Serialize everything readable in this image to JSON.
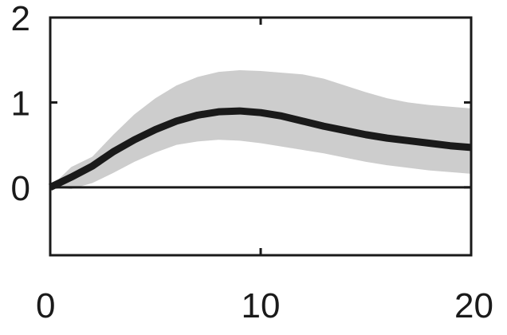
{
  "chart_data": {
    "type": "line",
    "title": "",
    "xlabel": "",
    "ylabel": "",
    "xlim": [
      0,
      20
    ],
    "ylim": [
      -0.8,
      2
    ],
    "xticks": [
      0,
      10,
      20
    ],
    "xtick_labels": [
      "0",
      "10",
      "20"
    ],
    "yticks": [
      0,
      1,
      2
    ],
    "ytick_labels": [
      "0",
      "1",
      "2"
    ],
    "grid": false,
    "legend": "none",
    "zero_line": 0,
    "series": [
      {
        "x": [
          0,
          1,
          2,
          3,
          4,
          5,
          6,
          7,
          8,
          9,
          10,
          11,
          12,
          13,
          14,
          15,
          16,
          17,
          18,
          19,
          20
        ],
        "y": [
          0.0,
          0.12,
          0.25,
          0.42,
          0.56,
          0.68,
          0.78,
          0.85,
          0.89,
          0.9,
          0.88,
          0.84,
          0.78,
          0.72,
          0.67,
          0.62,
          0.58,
          0.55,
          0.52,
          0.49,
          0.47
        ],
        "lower": [
          0.0,
          -0.02,
          0.05,
          0.17,
          0.3,
          0.41,
          0.5,
          0.54,
          0.56,
          0.55,
          0.52,
          0.48,
          0.44,
          0.4,
          0.35,
          0.3,
          0.26,
          0.23,
          0.2,
          0.18,
          0.16
        ],
        "upper": [
          0.0,
          0.24,
          0.36,
          0.62,
          0.86,
          1.05,
          1.2,
          1.3,
          1.36,
          1.38,
          1.37,
          1.35,
          1.33,
          1.28,
          1.2,
          1.12,
          1.05,
          1.0,
          0.97,
          0.95,
          0.93
        ],
        "color": "#1a1a1a",
        "band_color": "#cdcdcd"
      }
    ]
  }
}
